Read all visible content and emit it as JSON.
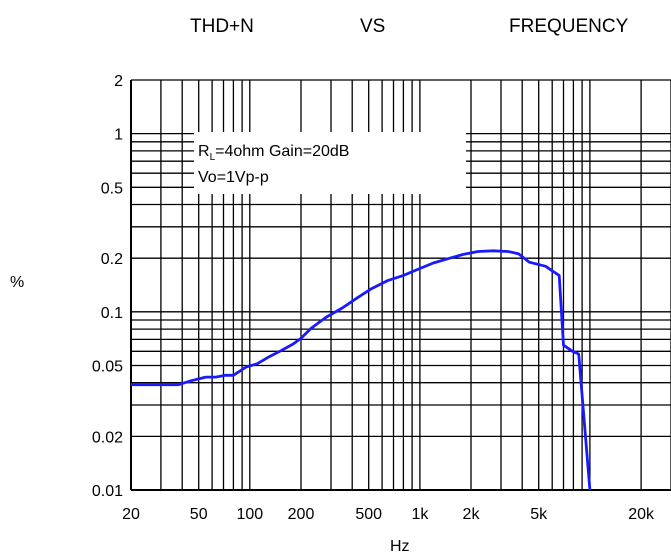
{
  "chart_data": {
    "type": "line",
    "title_parts": [
      "THD+N",
      "VS",
      "FREQUENCY"
    ],
    "xlabel": "Hz",
    "ylabel": "%",
    "x_scale": "log",
    "y_scale": "log",
    "xlim": [
      20,
      30000
    ],
    "ylim": [
      0.01,
      2
    ],
    "grid": true,
    "x_ticks": [
      {
        "value": 20,
        "label": "20"
      },
      {
        "value": 50,
        "label": "50"
      },
      {
        "value": 100,
        "label": "100"
      },
      {
        "value": 200,
        "label": "200"
      },
      {
        "value": 500,
        "label": "500"
      },
      {
        "value": 1000,
        "label": "1k"
      },
      {
        "value": 2000,
        "label": "2k"
      },
      {
        "value": 5000,
        "label": "5k"
      },
      {
        "value": 20000,
        "label": "20k"
      }
    ],
    "y_ticks": [
      {
        "value": 0.01,
        "label": "0.01"
      },
      {
        "value": 0.02,
        "label": "0.02"
      },
      {
        "value": 0.05,
        "label": "0.05"
      },
      {
        "value": 0.1,
        "label": "0.1"
      },
      {
        "value": 0.2,
        "label": "0.2"
      },
      {
        "value": 0.5,
        "label": "0.5"
      },
      {
        "value": 1,
        "label": "1"
      },
      {
        "value": 2,
        "label": "2"
      }
    ],
    "annotation": {
      "line1_prefix": "R",
      "line1_sub": "L",
      "line1_rest": "=4ohm Gain=20dB",
      "line2": "Vo=1Vp-p"
    },
    "series": [
      {
        "color": "#1a1aff",
        "x": [
          20,
          25,
          30,
          38,
          45,
          55,
          63,
          72,
          80,
          95,
          110,
          130,
          150,
          180,
          200,
          230,
          280,
          350,
          430,
          520,
          650,
          800,
          1000,
          1200,
          1500,
          1800,
          2200,
          2700,
          3300,
          3800,
          4400,
          5500,
          6000,
          6600,
          7000,
          7900,
          8600,
          10000
        ],
        "y": [
          0.039,
          0.039,
          0.039,
          0.039,
          0.041,
          0.043,
          0.043,
          0.044,
          0.044,
          0.049,
          0.051,
          0.056,
          0.06,
          0.066,
          0.071,
          0.081,
          0.093,
          0.105,
          0.12,
          0.135,
          0.15,
          0.16,
          0.175,
          0.188,
          0.2,
          0.21,
          0.218,
          0.22,
          0.218,
          0.212,
          0.19,
          0.18,
          0.17,
          0.16,
          0.065,
          0.06,
          0.058,
          0.01
        ]
      }
    ]
  }
}
